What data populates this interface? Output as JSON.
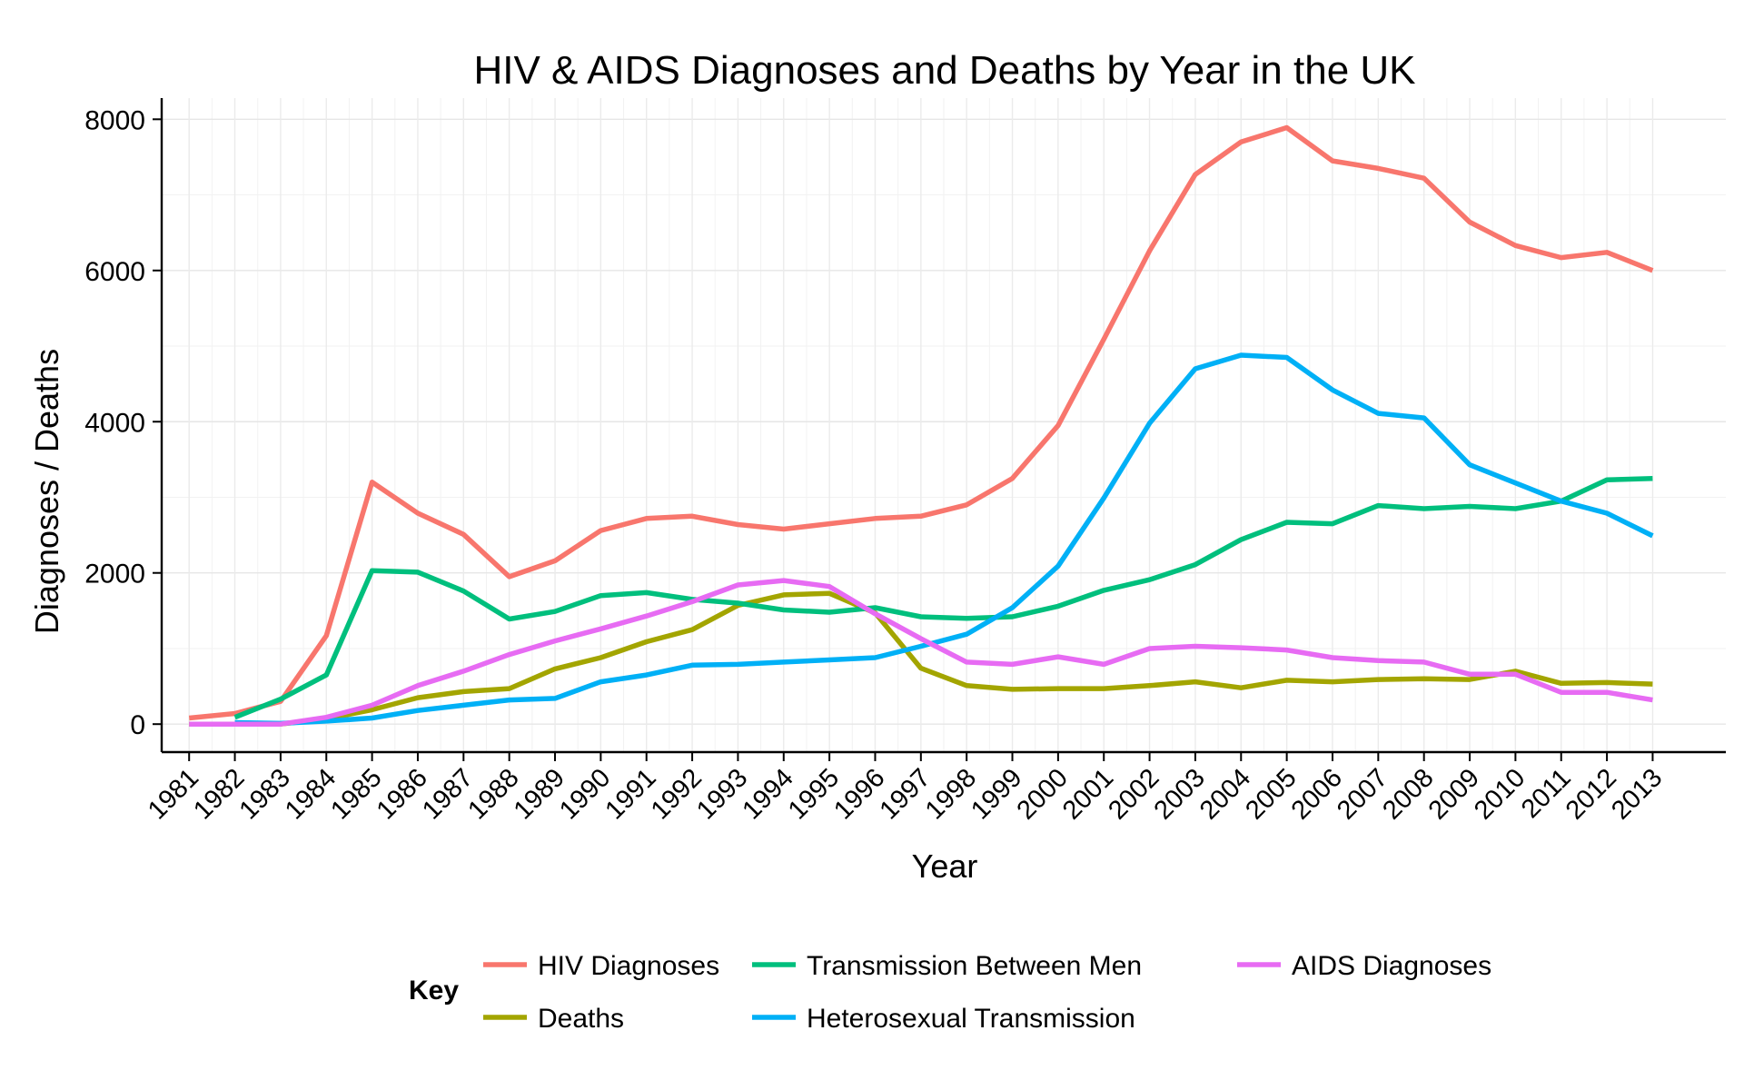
{
  "chart_data": {
    "type": "line",
    "title": "HIV & AIDS Diagnoses and Deaths by Year in the UK",
    "xlabel": "Year",
    "ylabel": "Diagnoses / Deaths",
    "x": [
      1981,
      1982,
      1983,
      1984,
      1985,
      1986,
      1987,
      1988,
      1989,
      1990,
      1991,
      1992,
      1993,
      1994,
      1995,
      1996,
      1997,
      1998,
      1999,
      2000,
      2001,
      2002,
      2003,
      2004,
      2005,
      2006,
      2007,
      2008,
      2009,
      2010,
      2011,
      2012,
      2013
    ],
    "ylim": [
      -370,
      8280
    ],
    "xlim": [
      1980.4,
      2014.6
    ],
    "yticks": [
      0,
      2000,
      4000,
      6000,
      8000
    ],
    "grid": true,
    "legend_position": "bottom",
    "legend_title": "Key",
    "series": [
      {
        "name": "HIV Diagnoses",
        "color": "#F8766D",
        "values": [
          80,
          140,
          300,
          1170,
          3200,
          2790,
          2510,
          1950,
          2160,
          2560,
          2720,
          2750,
          2640,
          2580,
          2650,
          2720,
          2750,
          2900,
          3250,
          3950,
          5090,
          6260,
          7270,
          7700,
          7890,
          7450,
          7350,
          7220,
          6640,
          6330,
          6170,
          6240,
          6000
        ]
      },
      {
        "name": "Deaths",
        "color": "#A3A500",
        "values": [
          0,
          0,
          0,
          70,
          190,
          350,
          430,
          470,
          730,
          880,
          1090,
          1250,
          1570,
          1710,
          1730,
          1470,
          740,
          510,
          460,
          470,
          470,
          510,
          560,
          480,
          580,
          560,
          590,
          600,
          590,
          700,
          540,
          550,
          530
        ]
      },
      {
        "name": "Transmission Between Men",
        "color": "#00BF7D",
        "values": [
          null,
          90,
          330,
          650,
          2030,
          2010,
          1760,
          1390,
          1490,
          1700,
          1740,
          1650,
          1600,
          1510,
          1480,
          1540,
          1420,
          1400,
          1420,
          1560,
          1770,
          1910,
          2110,
          2440,
          2670,
          2650,
          2890,
          2850,
          2880,
          2850,
          2950,
          3230,
          3250
        ]
      },
      {
        "name": "Heterosexual Transmission",
        "color": "#00B0F6",
        "values": [
          null,
          20,
          10,
          40,
          80,
          180,
          250,
          320,
          340,
          560,
          650,
          780,
          790,
          820,
          850,
          880,
          1030,
          1190,
          1540,
          2090,
          2990,
          3980,
          4700,
          4880,
          4850,
          4420,
          4110,
          4050,
          3430,
          3190,
          2950,
          2790,
          2490
        ]
      },
      {
        "name": "AIDS Diagnoses",
        "color": "#E76BF3",
        "values": [
          0,
          0,
          0,
          90,
          250,
          510,
          700,
          920,
          1100,
          1260,
          1430,
          1620,
          1840,
          1900,
          1820,
          1460,
          1130,
          820,
          790,
          890,
          790,
          1000,
          1030,
          1010,
          980,
          880,
          840,
          820,
          660,
          660,
          420,
          420,
          320
        ]
      }
    ]
  }
}
